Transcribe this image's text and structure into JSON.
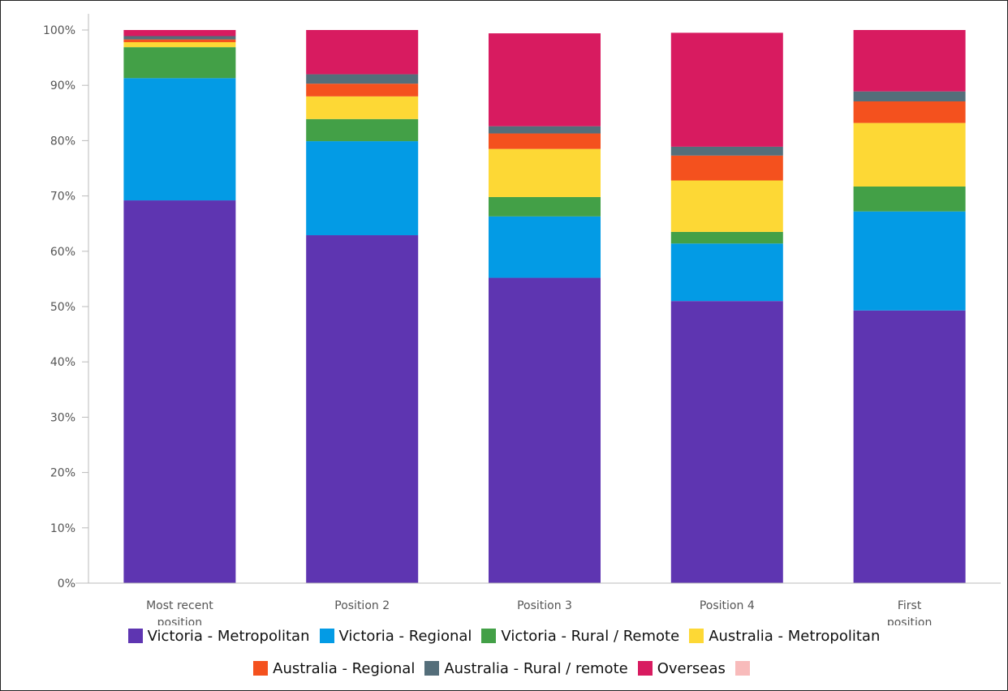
{
  "chart_data": {
    "type": "bar",
    "stacked": true,
    "categories": [
      [
        "Most recent",
        "position"
      ],
      [
        "Position 2"
      ],
      [
        "Position 3"
      ],
      [
        "Position 4"
      ],
      [
        "First",
        "position"
      ]
    ],
    "ylim": [
      0,
      100
    ],
    "yticks": [
      0,
      10,
      20,
      30,
      40,
      50,
      60,
      70,
      80,
      90,
      100
    ],
    "ytick_format": "{v}%",
    "grid": false,
    "legend_position": "bottom",
    "series": [
      {
        "name": "Victoria - Metropolitan",
        "color": "#5e35b1",
        "values": [
          69.2,
          62.9,
          55.2,
          51.0,
          49.3
        ]
      },
      {
        "name": "Victoria - Regional",
        "color": "#039be5",
        "values": [
          22.1,
          17.0,
          11.1,
          10.4,
          17.9
        ]
      },
      {
        "name": "Victoria - Rural / Remote",
        "color": "#43a047",
        "values": [
          5.6,
          4.0,
          3.5,
          2.1,
          4.5
        ]
      },
      {
        "name": "Australia - Metropolitan",
        "color": "#fdd835",
        "values": [
          0.9,
          4.1,
          8.7,
          9.3,
          11.5
        ]
      },
      {
        "name": "Australia - Regional",
        "color": "#f4511e",
        "values": [
          0.5,
          2.3,
          2.8,
          4.5,
          3.9
        ]
      },
      {
        "name": "Australia - Rural / remote",
        "color": "#546e7a",
        "values": [
          0.6,
          1.7,
          1.3,
          1.6,
          1.8
        ]
      },
      {
        "name": "Overseas",
        "color": "#d81b60",
        "values": [
          1.1,
          8.0,
          16.8,
          20.6,
          11.1
        ]
      },
      {
        "name": "",
        "color": "#f8bbbb",
        "values": [
          0,
          0,
          0,
          0,
          0
        ]
      }
    ]
  }
}
